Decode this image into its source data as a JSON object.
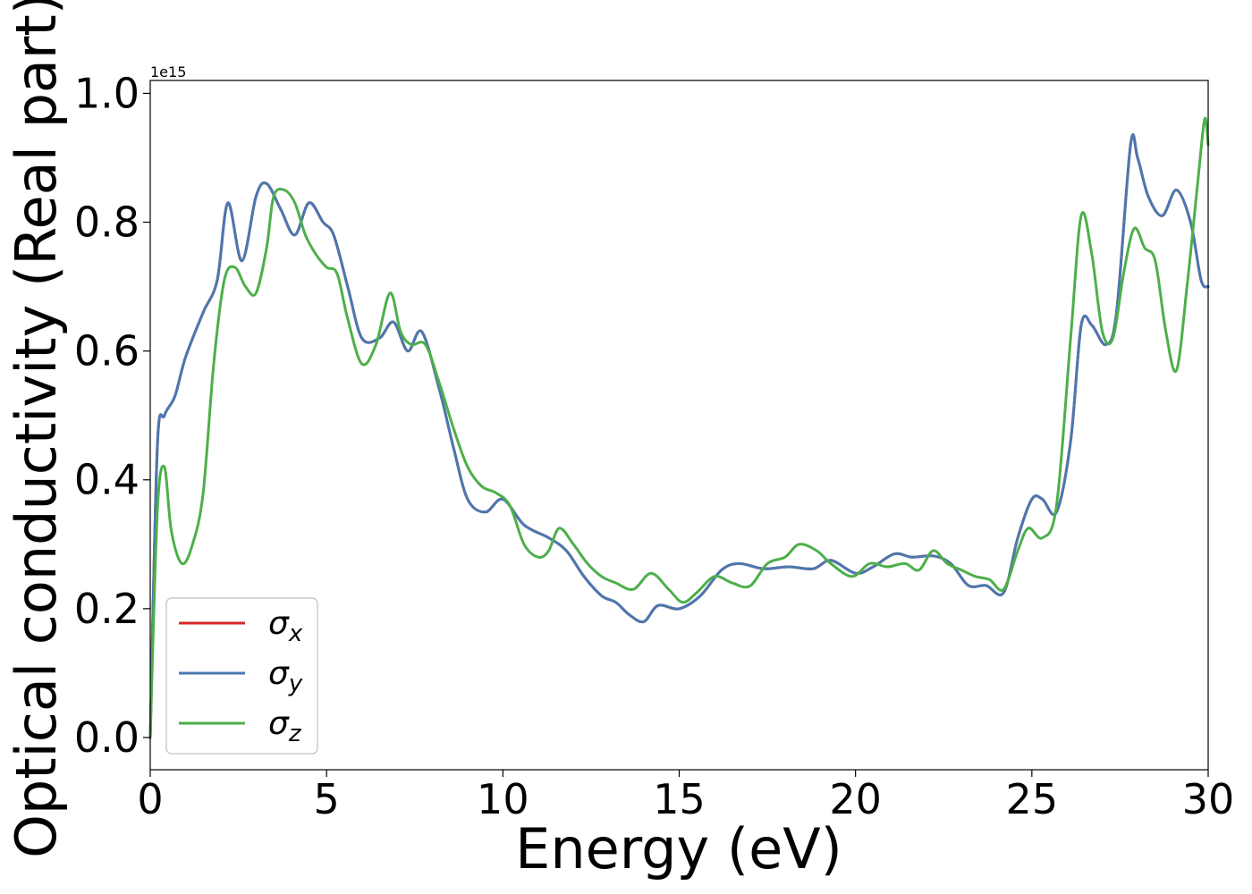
{
  "chart_data": {
    "type": "line",
    "xlabel": "Energy (eV)",
    "ylabel": "Optical conductivity (Real part)",
    "offset_label": "1e15",
    "xlim": [
      0,
      30
    ],
    "ylim": [
      -0.05,
      1.02
    ],
    "y_scale_factor": "1e15",
    "x_ticks": [
      0,
      5,
      10,
      15,
      20,
      25,
      30
    ],
    "x_tick_labels": [
      "0",
      "5",
      "10",
      "15",
      "20",
      "25",
      "30"
    ],
    "y_ticks": [
      0.0,
      0.2,
      0.4,
      0.6,
      0.8,
      1.0
    ],
    "y_tick_labels": [
      "0.0",
      "0.2",
      "0.4",
      "0.6",
      "0.8",
      "1.0"
    ],
    "grid": false,
    "legend_placement": "lower-left",
    "legend": [
      {
        "name": "σ",
        "sub": "x",
        "color": "#d62728"
      },
      {
        "name": "σ",
        "sub": "y",
        "color": "#4a78b0"
      },
      {
        "name": "σ",
        "sub": "z",
        "color": "#4daf4a"
      }
    ],
    "series": [
      {
        "name": "σx",
        "color": "#d62728",
        "x": [
          0,
          0.2,
          0.4,
          0.7,
          1.0,
          1.5,
          1.9,
          2.2,
          2.6,
          3.0,
          3.3,
          3.7,
          4.1,
          4.5,
          4.9,
          5.2,
          5.6,
          6.0,
          6.5,
          6.9,
          7.3,
          7.7,
          8.2,
          8.6,
          9.0,
          9.5,
          10.0,
          10.6,
          11.3,
          11.8,
          12.3,
          12.8,
          13.2,
          13.6,
          14.0,
          14.4,
          15.0,
          15.6,
          16.2,
          16.7,
          17.4,
          18.1,
          18.8,
          19.3,
          20.0,
          20.5,
          21.1,
          21.6,
          22.2,
          22.7,
          23.2,
          23.7,
          24.2,
          24.6,
          25.0,
          25.3,
          25.7,
          26.1,
          26.4,
          26.7,
          27.1,
          27.4,
          27.8,
          28.0,
          28.3,
          28.7,
          29.1,
          29.5,
          29.8,
          30.0
        ],
        "y": [
          0.0,
          0.45,
          0.5,
          0.53,
          0.59,
          0.66,
          0.71,
          0.83,
          0.74,
          0.84,
          0.86,
          0.82,
          0.78,
          0.83,
          0.8,
          0.78,
          0.7,
          0.62,
          0.62,
          0.645,
          0.6,
          0.63,
          0.54,
          0.45,
          0.37,
          0.35,
          0.37,
          0.33,
          0.31,
          0.29,
          0.25,
          0.22,
          0.21,
          0.19,
          0.18,
          0.205,
          0.2,
          0.22,
          0.26,
          0.27,
          0.262,
          0.265,
          0.262,
          0.275,
          0.255,
          0.265,
          0.285,
          0.28,
          0.282,
          0.27,
          0.236,
          0.236,
          0.225,
          0.31,
          0.37,
          0.37,
          0.35,
          0.46,
          0.64,
          0.64,
          0.61,
          0.66,
          0.92,
          0.9,
          0.84,
          0.81,
          0.85,
          0.8,
          0.71,
          0.7
        ]
      },
      {
        "name": "σy",
        "color": "#4a78b0",
        "x": [
          0,
          0.2,
          0.4,
          0.7,
          1.0,
          1.5,
          1.9,
          2.2,
          2.6,
          3.0,
          3.3,
          3.7,
          4.1,
          4.5,
          4.9,
          5.2,
          5.6,
          6.0,
          6.5,
          6.9,
          7.3,
          7.7,
          8.2,
          8.6,
          9.0,
          9.5,
          10.0,
          10.6,
          11.3,
          11.8,
          12.3,
          12.8,
          13.2,
          13.6,
          14.0,
          14.4,
          15.0,
          15.6,
          16.2,
          16.7,
          17.4,
          18.1,
          18.8,
          19.3,
          20.0,
          20.5,
          21.1,
          21.6,
          22.2,
          22.7,
          23.2,
          23.7,
          24.2,
          24.6,
          25.0,
          25.3,
          25.7,
          26.1,
          26.4,
          26.7,
          27.1,
          27.4,
          27.8,
          28.0,
          28.3,
          28.7,
          29.1,
          29.5,
          29.8,
          30.0
        ],
        "y": [
          0.0,
          0.45,
          0.5,
          0.53,
          0.59,
          0.66,
          0.71,
          0.83,
          0.74,
          0.84,
          0.86,
          0.82,
          0.78,
          0.83,
          0.8,
          0.78,
          0.7,
          0.62,
          0.62,
          0.645,
          0.6,
          0.63,
          0.54,
          0.45,
          0.37,
          0.35,
          0.37,
          0.33,
          0.31,
          0.29,
          0.25,
          0.22,
          0.21,
          0.19,
          0.18,
          0.205,
          0.2,
          0.22,
          0.26,
          0.27,
          0.262,
          0.265,
          0.262,
          0.275,
          0.255,
          0.265,
          0.285,
          0.28,
          0.282,
          0.27,
          0.236,
          0.236,
          0.225,
          0.31,
          0.37,
          0.37,
          0.35,
          0.46,
          0.64,
          0.64,
          0.61,
          0.66,
          0.92,
          0.9,
          0.84,
          0.81,
          0.85,
          0.8,
          0.71,
          0.7
        ]
      },
      {
        "name": "σz",
        "color": "#4daf4a",
        "x": [
          0,
          0.2,
          0.4,
          0.6,
          0.9,
          1.2,
          1.5,
          1.8,
          2.1,
          2.4,
          2.7,
          3.0,
          3.3,
          3.5,
          3.8,
          4.1,
          4.4,
          4.7,
          5.0,
          5.3,
          5.6,
          6.0,
          6.4,
          6.8,
          7.1,
          7.4,
          7.8,
          8.2,
          8.6,
          9.0,
          9.4,
          9.8,
          10.2,
          10.6,
          11.0,
          11.3,
          11.6,
          12.0,
          12.4,
          12.8,
          13.2,
          13.7,
          14.2,
          14.7,
          15.1,
          15.5,
          16.0,
          16.5,
          17.0,
          17.5,
          18.0,
          18.4,
          18.9,
          19.3,
          19.9,
          20.4,
          20.9,
          21.4,
          21.8,
          22.2,
          22.6,
          23.0,
          23.4,
          23.8,
          24.2,
          24.6,
          24.9,
          25.3,
          25.7,
          26.1,
          26.4,
          26.7,
          27.0,
          27.3,
          27.6,
          27.9,
          28.2,
          28.5,
          28.8,
          29.1,
          29.4,
          29.7,
          29.9,
          30.0
        ],
        "y": [
          0.0,
          0.35,
          0.42,
          0.32,
          0.27,
          0.3,
          0.38,
          0.58,
          0.71,
          0.73,
          0.7,
          0.69,
          0.76,
          0.84,
          0.85,
          0.83,
          0.78,
          0.75,
          0.73,
          0.72,
          0.65,
          0.58,
          0.61,
          0.69,
          0.63,
          0.61,
          0.61,
          0.55,
          0.48,
          0.42,
          0.39,
          0.38,
          0.36,
          0.3,
          0.28,
          0.29,
          0.325,
          0.3,
          0.27,
          0.25,
          0.24,
          0.23,
          0.255,
          0.23,
          0.21,
          0.225,
          0.25,
          0.24,
          0.235,
          0.27,
          0.28,
          0.3,
          0.29,
          0.27,
          0.25,
          0.27,
          0.265,
          0.27,
          0.26,
          0.29,
          0.27,
          0.26,
          0.25,
          0.245,
          0.23,
          0.29,
          0.325,
          0.31,
          0.36,
          0.62,
          0.81,
          0.75,
          0.63,
          0.62,
          0.72,
          0.79,
          0.76,
          0.74,
          0.63,
          0.57,
          0.7,
          0.86,
          0.96,
          0.92
        ]
      }
    ]
  }
}
